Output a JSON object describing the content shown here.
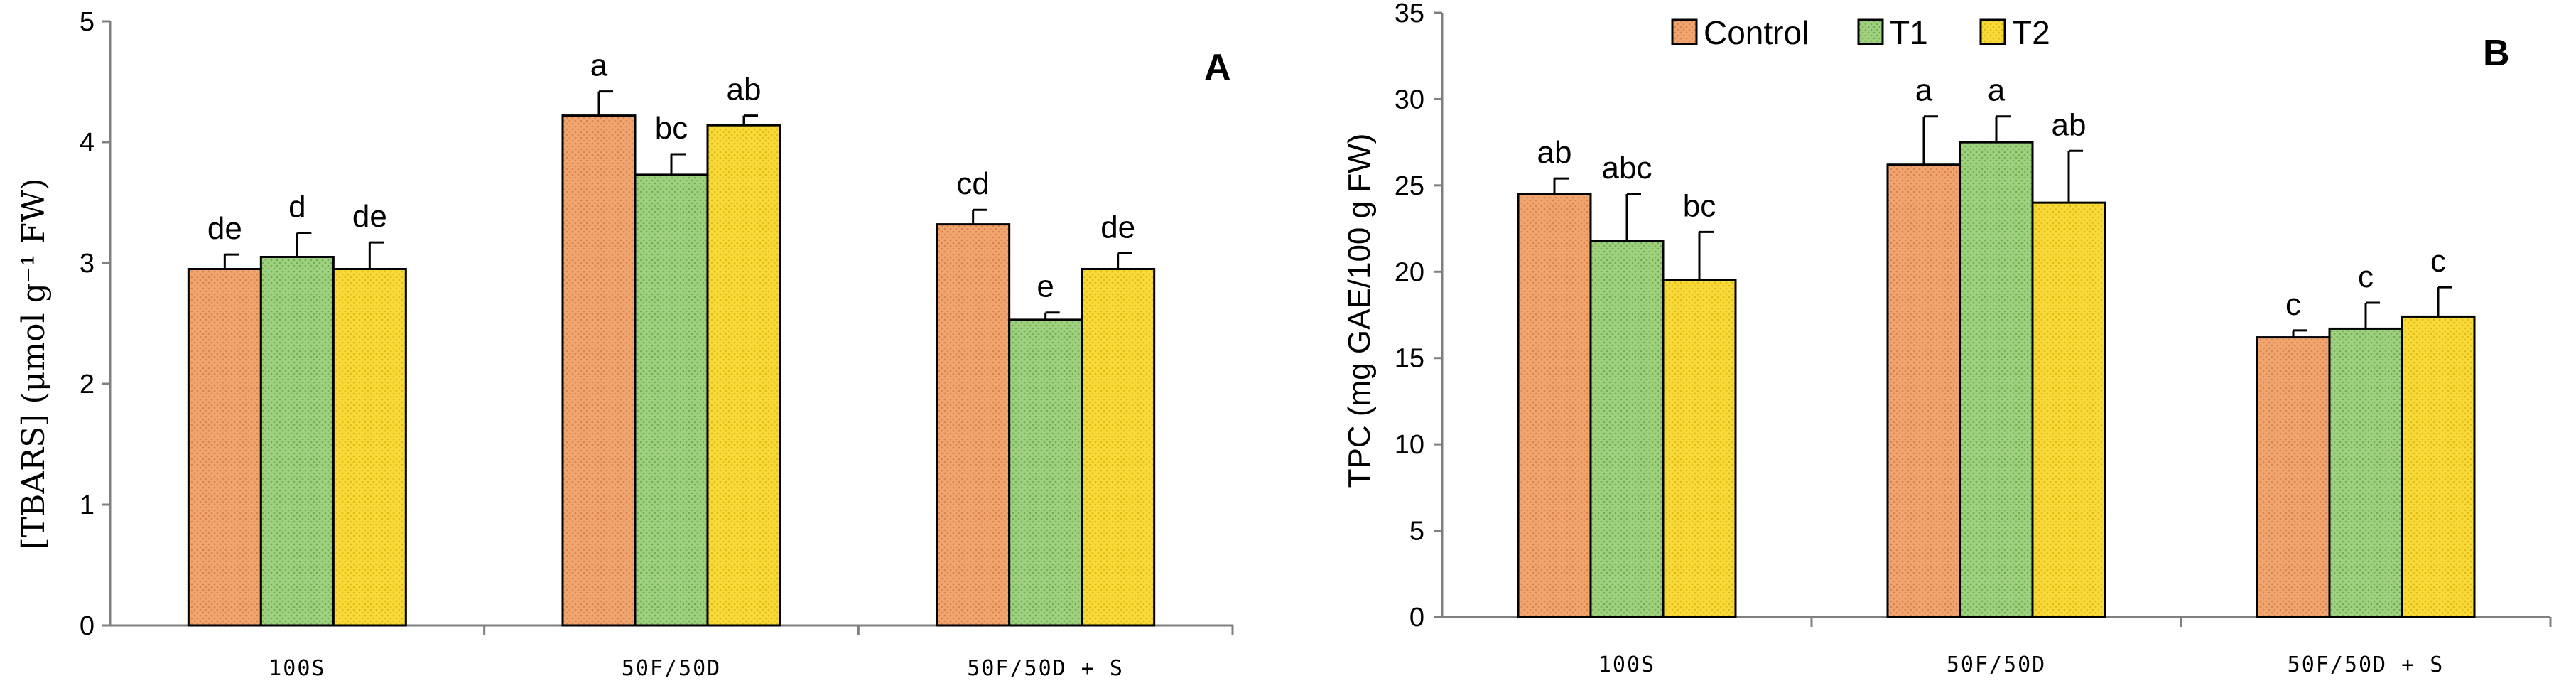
{
  "colors": {
    "Control": "#f0a56f",
    "T1": "#9fd07f",
    "T2": "#f7d93a"
  },
  "chart_data": [
    {
      "type": "bar",
      "panel_label": "A",
      "ylabel": "[TBARS] (μmol g⁻¹ FW)",
      "ylim": [
        0,
        5
      ],
      "yticks": [
        "0",
        "1",
        "2",
        "3",
        "4",
        "5"
      ],
      "categories": [
        "100S",
        "50F/50D",
        "50F/50D + S"
      ],
      "legend": "none",
      "series": [
        {
          "key": "Control",
          "values": [
            2.95,
            4.22,
            3.32
          ],
          "errors": [
            0.12,
            0.2,
            0.12
          ],
          "letters": [
            "de",
            "a",
            "cd"
          ]
        },
        {
          "key": "T1",
          "values": [
            3.05,
            3.73,
            2.53
          ],
          "errors": [
            0.2,
            0.17,
            0.06
          ],
          "letters": [
            "d",
            "bc",
            "e"
          ]
        },
        {
          "key": "T2",
          "values": [
            2.95,
            4.14,
            2.95
          ],
          "errors": [
            0.22,
            0.08,
            0.13
          ],
          "letters": [
            "de",
            "ab",
            "de"
          ]
        }
      ]
    },
    {
      "type": "bar",
      "panel_label": "B",
      "ylabel": "TPC (mg GAE/100 g FW)",
      "ylim": [
        0,
        35
      ],
      "yticks": [
        "0",
        "5",
        "10",
        "15",
        "20",
        "25",
        "30",
        "35"
      ],
      "categories": [
        "100S",
        "50F/50D",
        "50F/50D + S"
      ],
      "legend": "top",
      "series": [
        {
          "name": "Control",
          "key": "Control",
          "values": [
            24.5,
            26.2,
            16.2
          ],
          "errors": [
            0.9,
            2.8,
            0.4
          ],
          "letters": [
            "ab",
            "a",
            "c"
          ]
        },
        {
          "name": "T1",
          "key": "T1",
          "values": [
            21.8,
            27.5,
            16.7
          ],
          "errors": [
            2.7,
            1.5,
            1.5
          ],
          "letters": [
            "abc",
            "a",
            "c"
          ]
        },
        {
          "name": "T2",
          "key": "T2",
          "values": [
            19.5,
            24.0,
            17.4
          ],
          "errors": [
            2.8,
            3.0,
            1.7
          ],
          "letters": [
            "bc",
            "ab",
            "c"
          ]
        }
      ]
    }
  ]
}
